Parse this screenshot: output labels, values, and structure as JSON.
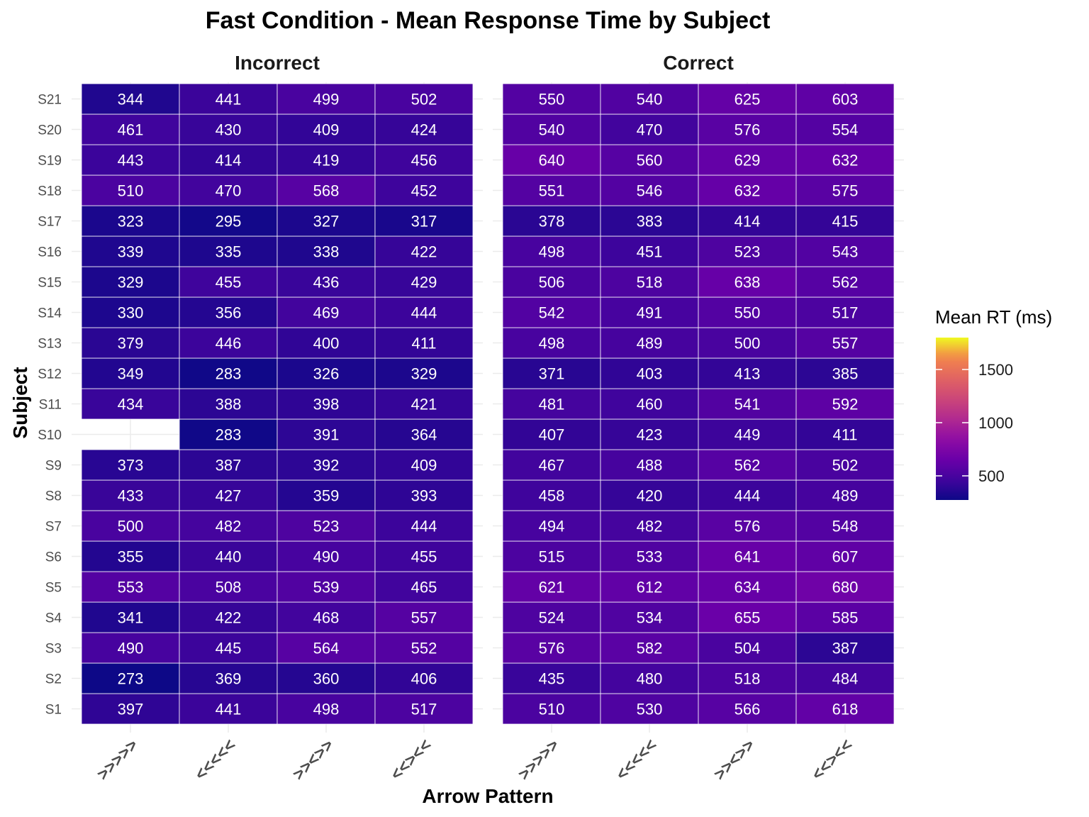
{
  "chart_data": {
    "type": "heatmap",
    "title": "Fast Condition - Mean Response Time by Subject",
    "xlabel": "Arrow Pattern",
    "ylabel": "Subject",
    "x_categories": [
      ">>>>>",
      "<<<<<",
      ">><>>",
      "<<><<"
    ],
    "y_categories": [
      "S1",
      "S2",
      "S3",
      "S4",
      "S5",
      "S6",
      "S7",
      "S8",
      "S9",
      "S10",
      "S11",
      "S12",
      "S13",
      "S14",
      "S15",
      "S16",
      "S17",
      "S18",
      "S19",
      "S20",
      "S21"
    ],
    "legend": {
      "title": "Mean RT (ms)",
      "palette": "plasma",
      "range": [
        273,
        1800
      ],
      "ticks": [
        500,
        1000,
        1500
      ],
      "placement": "right"
    },
    "grid": true,
    "panels": [
      {
        "name": "Incorrect",
        "values": [
          [
            397,
            441,
            498,
            517
          ],
          [
            273,
            369,
            360,
            406
          ],
          [
            490,
            445,
            564,
            552
          ],
          [
            341,
            422,
            468,
            557
          ],
          [
            553,
            508,
            539,
            465
          ],
          [
            355,
            440,
            490,
            455
          ],
          [
            500,
            482,
            523,
            444
          ],
          [
            433,
            427,
            359,
            393
          ],
          [
            373,
            387,
            392,
            409
          ],
          [
            null,
            283,
            391,
            364
          ],
          [
            434,
            388,
            398,
            421
          ],
          [
            349,
            283,
            326,
            329
          ],
          [
            379,
            446,
            400,
            411
          ],
          [
            330,
            356,
            469,
            444
          ],
          [
            329,
            455,
            436,
            429
          ],
          [
            339,
            335,
            338,
            422
          ],
          [
            323,
            295,
            327,
            317
          ],
          [
            510,
            470,
            568,
            452
          ],
          [
            443,
            414,
            419,
            456
          ],
          [
            461,
            430,
            409,
            424
          ],
          [
            344,
            441,
            499,
            502
          ]
        ]
      },
      {
        "name": "Correct",
        "values": [
          [
            510,
            530,
            566,
            618
          ],
          [
            435,
            480,
            518,
            484
          ],
          [
            576,
            582,
            504,
            387
          ],
          [
            524,
            534,
            655,
            585
          ],
          [
            621,
            612,
            634,
            680
          ],
          [
            515,
            533,
            641,
            607
          ],
          [
            494,
            482,
            576,
            548
          ],
          [
            458,
            420,
            444,
            489
          ],
          [
            467,
            488,
            562,
            502
          ],
          [
            407,
            423,
            449,
            411
          ],
          [
            481,
            460,
            541,
            592
          ],
          [
            371,
            403,
            413,
            385
          ],
          [
            498,
            489,
            500,
            557
          ],
          [
            542,
            491,
            550,
            517
          ],
          [
            506,
            518,
            638,
            562
          ],
          [
            498,
            451,
            523,
            543
          ],
          [
            378,
            383,
            414,
            415
          ],
          [
            551,
            546,
            632,
            575
          ],
          [
            640,
            560,
            629,
            632
          ],
          [
            540,
            470,
            576,
            554
          ],
          [
            550,
            540,
            625,
            603
          ]
        ]
      }
    ]
  }
}
